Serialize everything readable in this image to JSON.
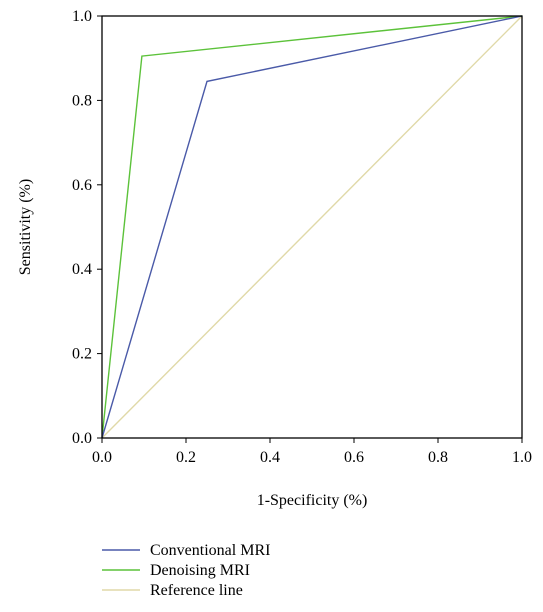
{
  "chart_data": {
    "type": "line",
    "title": "",
    "xlabel": "1-Specificity (%)",
    "ylabel": "Sensitivity (%)",
    "xlim": [
      0,
      1
    ],
    "ylim": [
      0,
      1
    ],
    "x_ticks": [
      "0.0",
      "0.2",
      "0.4",
      "0.6",
      "0.8",
      "1.0"
    ],
    "y_ticks": [
      "0.0",
      "0.2",
      "0.4",
      "0.6",
      "0.8",
      "1.0"
    ],
    "grid": false,
    "legend_position": "bottom",
    "series": [
      {
        "name": "Conventional MRI",
        "color": "#4a5aa8",
        "points": [
          [
            0,
            0
          ],
          [
            0.25,
            0.845
          ],
          [
            1,
            1
          ]
        ]
      },
      {
        "name": "Denoising MRI",
        "color": "#5cc23a",
        "points": [
          [
            0,
            0
          ],
          [
            0.095,
            0.905
          ],
          [
            1,
            1
          ]
        ]
      },
      {
        "name": "Reference line",
        "color": "#e0d9a8",
        "points": [
          [
            0,
            0
          ],
          [
            1,
            1
          ]
        ]
      }
    ]
  }
}
